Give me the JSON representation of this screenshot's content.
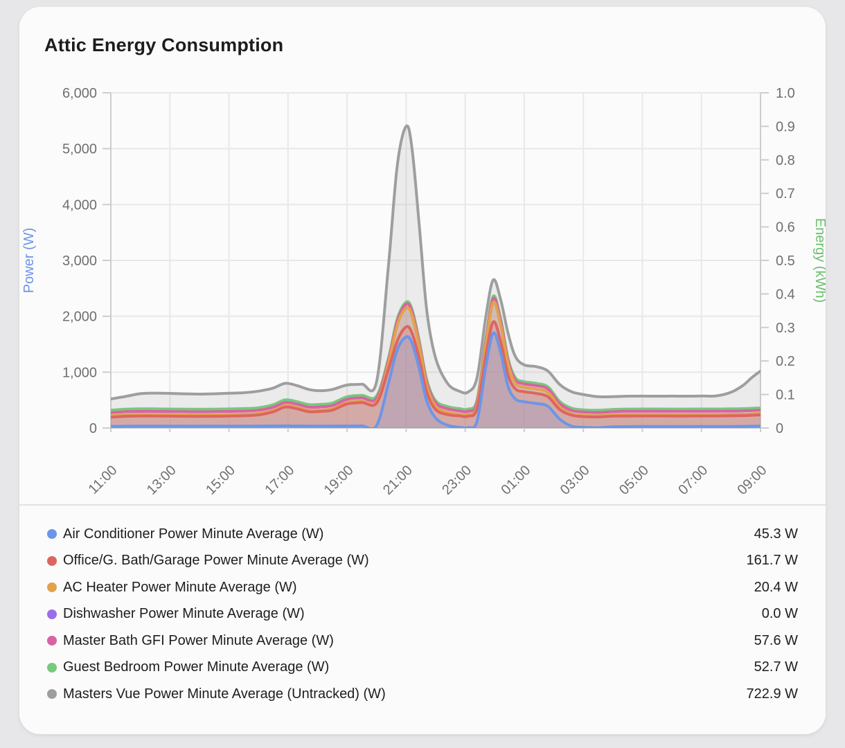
{
  "card": {
    "title": "Attic Energy Consumption"
  },
  "axes": {
    "left": {
      "title": "Power (W)",
      "color": "#6C95E8",
      "ticks": [
        "6,000",
        "5,000",
        "4,000",
        "3,000",
        "2,000",
        "1,000",
        "0"
      ]
    },
    "right": {
      "title": "Energy (kWh)",
      "color": "#6CBF70",
      "ticks": [
        "1.0",
        "0.9",
        "0.8",
        "0.7",
        "0.6",
        "0.5",
        "0.4",
        "0.3",
        "0.2",
        "0.1",
        "0"
      ]
    },
    "x": {
      "ticks": [
        "11:00",
        "13:00",
        "15:00",
        "17:00",
        "19:00",
        "21:00",
        "23:00",
        "01:00",
        "03:00",
        "05:00",
        "07:00",
        "09:00"
      ]
    }
  },
  "chart_data": {
    "type": "area",
    "stacked": true,
    "title": "Attic Energy Consumption",
    "ylabel_left": "Power (W)",
    "ylabel_right": "Energy (kWh)",
    "ylim_w": [
      0,
      6000
    ],
    "ylim_kwh": [
      0,
      1.0
    ],
    "grid": "on",
    "x_tick_labels": [
      "11:00",
      "13:00",
      "15:00",
      "17:00",
      "19:00",
      "21:00",
      "23:00",
      "01:00",
      "03:00",
      "05:00",
      "07:00",
      "09:00"
    ],
    "x_hours_from_11_00": [
      0,
      0.5,
      1,
      1.5,
      2,
      2.5,
      3,
      3.5,
      4,
      4.5,
      5,
      5.5,
      5.9,
      6.3,
      6.7,
      7.1,
      7.5,
      8,
      8.5,
      9,
      9.4,
      9.7,
      10,
      10.2,
      10.45,
      10.7,
      11,
      11.4,
      11.8,
      12.1,
      12.4,
      12.7,
      12.95,
      13.2,
      13.45,
      13.7,
      14,
      14.4,
      14.8,
      15.2,
      15.6,
      16,
      16.5,
      17,
      17.5,
      18,
      18.5,
      19,
      19.5,
      20,
      20.5,
      21,
      21.4,
      21.7,
      22
    ],
    "values_are": "stacked cumulative line positions in watts (each line = its series + all series below it)",
    "series": [
      {
        "key": "air-conditioner",
        "name": "Air Conditioner Power Minute Average (W)",
        "color": "#6C95E8",
        "fill_alpha": 0.2,
        "values": [
          30,
          32,
          33,
          34,
          34,
          33,
          33,
          34,
          34,
          35,
          35,
          36,
          38,
          36,
          35,
          35,
          35,
          36,
          38,
          45,
          800,
          1400,
          1630,
          1520,
          1050,
          480,
          180,
          50,
          15,
          8,
          120,
          1100,
          1700,
          1350,
          750,
          520,
          470,
          440,
          390,
          160,
          35,
          12,
          6,
          22,
          26,
          27,
          27,
          27,
          27,
          27,
          27,
          28,
          30,
          32,
          35
        ]
      },
      {
        "key": "office-g-bath-garage",
        "name": "Office/G. Bath/Garage Power Minute Average (W)",
        "color": "#DD6560",
        "fill_alpha": 0.2,
        "values": [
          195,
          210,
          215,
          215,
          212,
          210,
          208,
          210,
          214,
          220,
          235,
          290,
          375,
          345,
          292,
          296,
          320,
          430,
          455,
          445,
          1050,
          1560,
          1810,
          1700,
          1230,
          640,
          330,
          240,
          218,
          212,
          350,
          1300,
          1900,
          1550,
          950,
          700,
          650,
          620,
          560,
          330,
          230,
          205,
          198,
          212,
          215,
          216,
          216,
          215,
          215,
          216,
          216,
          218,
          222,
          228,
          235
        ]
      },
      {
        "key": "ac-heater",
        "name": "AC Heater Power Minute Average (W)",
        "color": "#E2A24D",
        "fill_alpha": 0.18,
        "values": [
          220,
          235,
          240,
          240,
          237,
          235,
          233,
          235,
          239,
          245,
          260,
          315,
          400,
          370,
          317,
          321,
          345,
          457,
          482,
          472,
          1150,
          1850,
          2150,
          2020,
          1450,
          760,
          390,
          285,
          248,
          242,
          400,
          1500,
          2250,
          1850,
          1150,
          800,
          730,
          700,
          640,
          378,
          258,
          228,
          220,
          235,
          240,
          241,
          241,
          240,
          240,
          241,
          241,
          243,
          247,
          253,
          260
        ]
      },
      {
        "key": "dishwasher",
        "name": "Dishwasher Power Minute Average (W)",
        "color": "#9A6EE8",
        "fill_alpha": 0.1,
        "values": [
          220,
          235,
          240,
          240,
          237,
          235,
          233,
          235,
          239,
          245,
          260,
          315,
          400,
          370,
          317,
          321,
          345,
          457,
          482,
          472,
          1150,
          1850,
          2150,
          2020,
          1450,
          760,
          390,
          285,
          248,
          242,
          400,
          1500,
          2250,
          1850,
          1150,
          800,
          730,
          700,
          640,
          378,
          258,
          228,
          220,
          235,
          240,
          241,
          241,
          240,
          240,
          241,
          241,
          243,
          247,
          253,
          260
        ]
      },
      {
        "key": "master-bath-gfi",
        "name": "Master Bath GFI Power Minute Average (W)",
        "color": "#D863A2",
        "fill_alpha": 0.18,
        "values": [
          275,
          292,
          298,
          298,
          295,
          293,
          291,
          293,
          297,
          303,
          318,
          373,
          458,
          428,
          375,
          379,
          403,
          515,
          540,
          530,
          1210,
          1915,
          2215,
          2085,
          1510,
          820,
          450,
          345,
          308,
          300,
          460,
          1560,
          2320,
          1920,
          1210,
          860,
          790,
          760,
          700,
          436,
          316,
          286,
          278,
          293,
          300,
          301,
          301,
          300,
          300,
          301,
          301,
          303,
          307,
          313,
          320
        ]
      },
      {
        "key": "guest-bedroom",
        "name": "Guest Bedroom Power Minute Average (W)",
        "color": "#77C97D",
        "fill_alpha": 0.18,
        "values": [
          320,
          337,
          343,
          343,
          340,
          338,
          336,
          338,
          342,
          348,
          363,
          418,
          503,
          473,
          420,
          424,
          448,
          560,
          585,
          575,
          1250,
          1955,
          2255,
          2125,
          1550,
          860,
          490,
          385,
          348,
          340,
          500,
          1600,
          2360,
          1960,
          1250,
          900,
          830,
          800,
          740,
          476,
          356,
          326,
          318,
          333,
          340,
          341,
          341,
          340,
          340,
          341,
          341,
          343,
          347,
          353,
          360
        ]
      },
      {
        "key": "masters-vue-untracked",
        "name": "Masters Vue Power Minute Average (Untracked) (W)",
        "color": "#9E9E9E",
        "fill_alpha": 0.16,
        "values": [
          520,
          565,
          615,
          625,
          620,
          612,
          608,
          612,
          622,
          632,
          660,
          715,
          800,
          760,
          690,
          668,
          690,
          770,
          785,
          830,
          2900,
          4700,
          5400,
          5000,
          3600,
          2100,
          1250,
          800,
          660,
          645,
          900,
          2000,
          2650,
          2300,
          1700,
          1280,
          1130,
          1100,
          1020,
          780,
          650,
          600,
          560,
          562,
          570,
          572,
          570,
          572,
          570,
          574,
          575,
          640,
          760,
          900,
          1020
        ]
      }
    ]
  },
  "legend": {
    "items": [
      {
        "label": "Air Conditioner Power Minute Average (W)",
        "value": "45.3 W",
        "color": "#6C95E8"
      },
      {
        "label": "Office/G. Bath/Garage Power Minute Average (W)",
        "value": "161.7 W",
        "color": "#DD6560"
      },
      {
        "label": "AC Heater Power Minute Average (W)",
        "value": "20.4 W",
        "color": "#E2A24D"
      },
      {
        "label": "Dishwasher Power Minute Average (W)",
        "value": "0.0 W",
        "color": "#9A6EE8"
      },
      {
        "label": "Master Bath GFI Power Minute Average (W)",
        "value": "57.6 W",
        "color": "#D863A2"
      },
      {
        "label": "Guest Bedroom Power Minute Average (W)",
        "value": "52.7 W",
        "color": "#77C97D"
      },
      {
        "label": "Masters Vue Power Minute Average (Untracked) (W)",
        "value": "722.9 W",
        "color": "#9E9E9E"
      }
    ]
  },
  "style": {
    "grid_color": "#e8e8e8",
    "axis_line_color": "#cdcdcd",
    "tick_label_color": "#6f6f6f"
  }
}
